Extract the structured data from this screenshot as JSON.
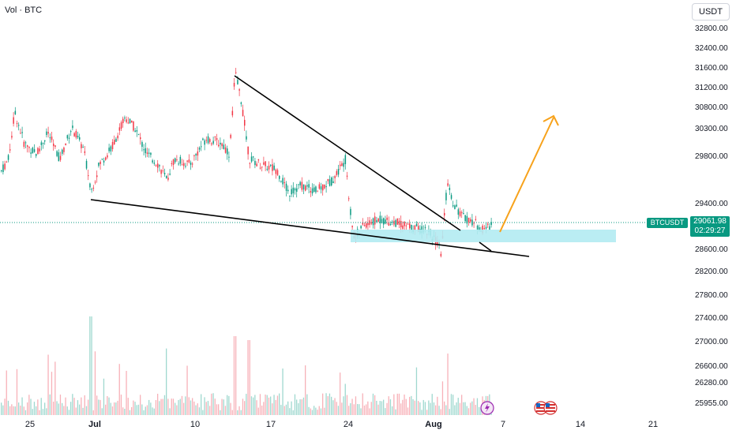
{
  "header": {
    "title": "Vol · BTC",
    "currency": "USDT"
  },
  "price_label": {
    "symbol": "BTCUSDT",
    "price": "29061.98",
    "countdown": "02:29:27"
  },
  "chart_data": {
    "type": "candlestick",
    "symbol": "BTCUSDT",
    "price_axis_ticks": [
      "32800.00",
      "32400.00",
      "31600.00",
      "31200.00",
      "30800.00",
      "30300.00",
      "29800.00",
      "29400.00",
      "28600.00",
      "28200.00",
      "27800.00",
      "27400.00",
      "27000.00",
      "26600.00",
      "26280.00",
      "25955.00"
    ],
    "time_axis_ticks": [
      "25",
      "Jul",
      "10",
      "17",
      "24",
      "Aug",
      "7",
      "14",
      "21"
    ],
    "last_price": 29061.98,
    "colors": {
      "up": "#089981",
      "down": "#f23645",
      "zone": "#b2ebf2",
      "target_arrow": "#f7a21b",
      "trendline": "#000000"
    },
    "candles": [],
    "annotations": {
      "upper_trendline": "descending resistance",
      "lower_trendline": "descending support",
      "demand_zone": "cyan rectangle",
      "projection": "orange arrow up"
    },
    "event_icons": [
      "lightning-icon",
      "us-flag-icon",
      "us-flag-icon"
    ]
  }
}
